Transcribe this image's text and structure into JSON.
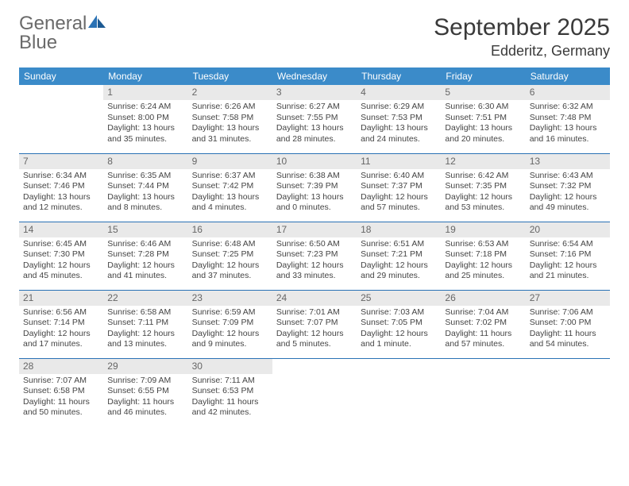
{
  "logo": {
    "text1": "General",
    "text2": "Blue"
  },
  "title": "September 2025",
  "location": "Edderitz, Germany",
  "colors": {
    "header_bg": "#3b8bc9",
    "border": "#2a72b5",
    "daybar": "#e9e9e9",
    "logo_gray": "#6a6a6a",
    "logo_blue": "#2a72b5"
  },
  "days_of_week": [
    "Sunday",
    "Monday",
    "Tuesday",
    "Wednesday",
    "Thursday",
    "Friday",
    "Saturday"
  ],
  "weeks": [
    [
      {
        "n": "",
        "sr": "",
        "ss": "",
        "dl": ""
      },
      {
        "n": "1",
        "sr": "Sunrise: 6:24 AM",
        "ss": "Sunset: 8:00 PM",
        "dl": "Daylight: 13 hours and 35 minutes."
      },
      {
        "n": "2",
        "sr": "Sunrise: 6:26 AM",
        "ss": "Sunset: 7:58 PM",
        "dl": "Daylight: 13 hours and 31 minutes."
      },
      {
        "n": "3",
        "sr": "Sunrise: 6:27 AM",
        "ss": "Sunset: 7:55 PM",
        "dl": "Daylight: 13 hours and 28 minutes."
      },
      {
        "n": "4",
        "sr": "Sunrise: 6:29 AM",
        "ss": "Sunset: 7:53 PM",
        "dl": "Daylight: 13 hours and 24 minutes."
      },
      {
        "n": "5",
        "sr": "Sunrise: 6:30 AM",
        "ss": "Sunset: 7:51 PM",
        "dl": "Daylight: 13 hours and 20 minutes."
      },
      {
        "n": "6",
        "sr": "Sunrise: 6:32 AM",
        "ss": "Sunset: 7:48 PM",
        "dl": "Daylight: 13 hours and 16 minutes."
      }
    ],
    [
      {
        "n": "7",
        "sr": "Sunrise: 6:34 AM",
        "ss": "Sunset: 7:46 PM",
        "dl": "Daylight: 13 hours and 12 minutes."
      },
      {
        "n": "8",
        "sr": "Sunrise: 6:35 AM",
        "ss": "Sunset: 7:44 PM",
        "dl": "Daylight: 13 hours and 8 minutes."
      },
      {
        "n": "9",
        "sr": "Sunrise: 6:37 AM",
        "ss": "Sunset: 7:42 PM",
        "dl": "Daylight: 13 hours and 4 minutes."
      },
      {
        "n": "10",
        "sr": "Sunrise: 6:38 AM",
        "ss": "Sunset: 7:39 PM",
        "dl": "Daylight: 13 hours and 0 minutes."
      },
      {
        "n": "11",
        "sr": "Sunrise: 6:40 AM",
        "ss": "Sunset: 7:37 PM",
        "dl": "Daylight: 12 hours and 57 minutes."
      },
      {
        "n": "12",
        "sr": "Sunrise: 6:42 AM",
        "ss": "Sunset: 7:35 PM",
        "dl": "Daylight: 12 hours and 53 minutes."
      },
      {
        "n": "13",
        "sr": "Sunrise: 6:43 AM",
        "ss": "Sunset: 7:32 PM",
        "dl": "Daylight: 12 hours and 49 minutes."
      }
    ],
    [
      {
        "n": "14",
        "sr": "Sunrise: 6:45 AM",
        "ss": "Sunset: 7:30 PM",
        "dl": "Daylight: 12 hours and 45 minutes."
      },
      {
        "n": "15",
        "sr": "Sunrise: 6:46 AM",
        "ss": "Sunset: 7:28 PM",
        "dl": "Daylight: 12 hours and 41 minutes."
      },
      {
        "n": "16",
        "sr": "Sunrise: 6:48 AM",
        "ss": "Sunset: 7:25 PM",
        "dl": "Daylight: 12 hours and 37 minutes."
      },
      {
        "n": "17",
        "sr": "Sunrise: 6:50 AM",
        "ss": "Sunset: 7:23 PM",
        "dl": "Daylight: 12 hours and 33 minutes."
      },
      {
        "n": "18",
        "sr": "Sunrise: 6:51 AM",
        "ss": "Sunset: 7:21 PM",
        "dl": "Daylight: 12 hours and 29 minutes."
      },
      {
        "n": "19",
        "sr": "Sunrise: 6:53 AM",
        "ss": "Sunset: 7:18 PM",
        "dl": "Daylight: 12 hours and 25 minutes."
      },
      {
        "n": "20",
        "sr": "Sunrise: 6:54 AM",
        "ss": "Sunset: 7:16 PM",
        "dl": "Daylight: 12 hours and 21 minutes."
      }
    ],
    [
      {
        "n": "21",
        "sr": "Sunrise: 6:56 AM",
        "ss": "Sunset: 7:14 PM",
        "dl": "Daylight: 12 hours and 17 minutes."
      },
      {
        "n": "22",
        "sr": "Sunrise: 6:58 AM",
        "ss": "Sunset: 7:11 PM",
        "dl": "Daylight: 12 hours and 13 minutes."
      },
      {
        "n": "23",
        "sr": "Sunrise: 6:59 AM",
        "ss": "Sunset: 7:09 PM",
        "dl": "Daylight: 12 hours and 9 minutes."
      },
      {
        "n": "24",
        "sr": "Sunrise: 7:01 AM",
        "ss": "Sunset: 7:07 PM",
        "dl": "Daylight: 12 hours and 5 minutes."
      },
      {
        "n": "25",
        "sr": "Sunrise: 7:03 AM",
        "ss": "Sunset: 7:05 PM",
        "dl": "Daylight: 12 hours and 1 minute."
      },
      {
        "n": "26",
        "sr": "Sunrise: 7:04 AM",
        "ss": "Sunset: 7:02 PM",
        "dl": "Daylight: 11 hours and 57 minutes."
      },
      {
        "n": "27",
        "sr": "Sunrise: 7:06 AM",
        "ss": "Sunset: 7:00 PM",
        "dl": "Daylight: 11 hours and 54 minutes."
      }
    ],
    [
      {
        "n": "28",
        "sr": "Sunrise: 7:07 AM",
        "ss": "Sunset: 6:58 PM",
        "dl": "Daylight: 11 hours and 50 minutes."
      },
      {
        "n": "29",
        "sr": "Sunrise: 7:09 AM",
        "ss": "Sunset: 6:55 PM",
        "dl": "Daylight: 11 hours and 46 minutes."
      },
      {
        "n": "30",
        "sr": "Sunrise: 7:11 AM",
        "ss": "Sunset: 6:53 PM",
        "dl": "Daylight: 11 hours and 42 minutes."
      },
      {
        "n": "",
        "sr": "",
        "ss": "",
        "dl": ""
      },
      {
        "n": "",
        "sr": "",
        "ss": "",
        "dl": ""
      },
      {
        "n": "",
        "sr": "",
        "ss": "",
        "dl": ""
      },
      {
        "n": "",
        "sr": "",
        "ss": "",
        "dl": ""
      }
    ]
  ]
}
